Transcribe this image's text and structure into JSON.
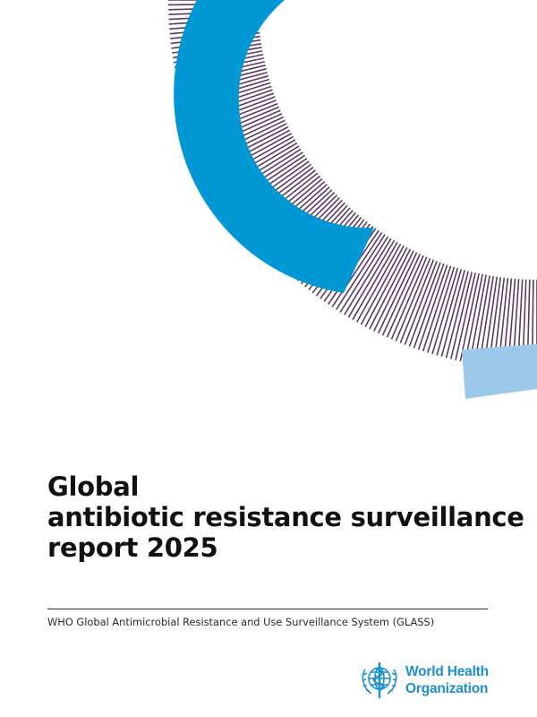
{
  "cover": {
    "colors": {
      "stripes": "#5d3a63",
      "primary_arc": "#0098d4",
      "accent": "#9cc8ea"
    }
  },
  "title": {
    "line1": "Global",
    "line2": "antibiotic resistance surveillance",
    "line3": "report 2025"
  },
  "subtitle": "WHO Global Antimicrobial Resistance and Use Surveillance System (GLASS)",
  "publisher": {
    "line1": "World Health",
    "line2": "Organization",
    "emblem": "who-emblem-icon",
    "color": "#1b8fd0"
  }
}
